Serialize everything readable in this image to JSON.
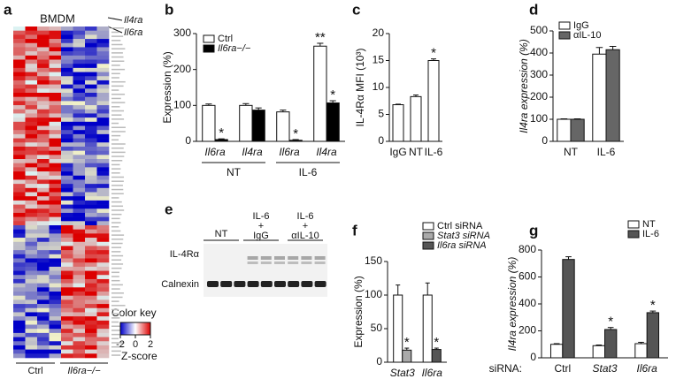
{
  "heatmap": {
    "panel": "a",
    "title": "BMDM",
    "genes": [
      "Il4ra",
      "Il6ra"
    ],
    "groups": [
      "Ctrl",
      "Il6ra−/−"
    ],
    "key_title": "Color key",
    "key_ticks": [
      -2,
      0,
      2
    ],
    "key_label": "Z-score"
  },
  "blot": {
    "panel": "e",
    "lanes": [
      [
        "NT"
      ],
      [
        "IL-6",
        "+",
        "IgG"
      ],
      [
        "IL-6",
        "+",
        "αIL-10"
      ]
    ],
    "rows": [
      "IL-4Rα",
      "Calnexin"
    ]
  },
  "chart_data": [
    {
      "type": "bar",
      "panel": "b",
      "ylabel": "Expression (%)",
      "categories": [
        "Il6ra",
        "Il4ra",
        "Il6ra",
        "Il4ra"
      ],
      "groups": [
        "NT",
        "IL-6"
      ],
      "ylim": [
        0,
        300
      ],
      "yticks": [
        0,
        100,
        200,
        300
      ],
      "series": [
        {
          "name": "Ctrl",
          "color": "#ffffff",
          "values": [
            100,
            100,
            82,
            265
          ],
          "errors": [
            4,
            5,
            5,
            8
          ],
          "stars": [
            null,
            null,
            null,
            "**"
          ]
        },
        {
          "name": "Il6ra−/−",
          "color": "#000000",
          "values": [
            5,
            87,
            3,
            107
          ],
          "errors": [
            2,
            6,
            2,
            6
          ],
          "stars": [
            "*",
            null,
            "*",
            "*"
          ]
        }
      ]
    },
    {
      "type": "bar",
      "panel": "c",
      "ylabel": "IL-4Rα MFI (10³)",
      "categories": [
        "IgG",
        "NT",
        "IL-6"
      ],
      "ylim": [
        0,
        20
      ],
      "yticks": [
        0,
        5,
        10,
        15,
        20
      ],
      "series": [
        {
          "color": "#ffffff",
          "values": [
            6.8,
            8.3,
            15.0
          ],
          "errors": [
            0.1,
            0.3,
            0.3
          ],
          "stars": [
            null,
            null,
            "*"
          ]
        }
      ]
    },
    {
      "type": "bar",
      "panel": "d",
      "ylabel": "Il4ra expression (%)",
      "categories": [
        "NT",
        "IL-6"
      ],
      "ylim": [
        0,
        500
      ],
      "yticks": [
        0,
        100,
        200,
        300,
        400,
        500
      ],
      "series": [
        {
          "name": "IgG",
          "color": "#ffffff",
          "values": [
            100,
            395
          ],
          "errors": [
            2,
            30
          ]
        },
        {
          "name": "αIL-10",
          "color": "#666666",
          "values": [
            100,
            415
          ],
          "errors": [
            2,
            15
          ]
        }
      ]
    },
    {
      "type": "bar",
      "panel": "f",
      "ylabel": "Expression (%)",
      "categories": [
        "Stat3",
        "Il6ra"
      ],
      "ylim": [
        0,
        150
      ],
      "yticks": [
        0,
        50,
        100,
        150
      ],
      "series": [
        {
          "name": "Ctrl siRNA",
          "color": "#ffffff",
          "values": [
            100,
            100
          ],
          "errors": [
            15,
            18
          ],
          "stars": [
            null,
            null
          ]
        },
        {
          "name": "Stat3 siRNA",
          "color": "#aaaaaa",
          "values": [
            18,
            null
          ],
          "errors": [
            3,
            null
          ],
          "stars": [
            "*",
            null
          ]
        },
        {
          "name": "Il6ra siRNA",
          "color": "#555555",
          "values": [
            null,
            19
          ],
          "errors": [
            null,
            2
          ],
          "stars": [
            null,
            "*"
          ]
        }
      ]
    },
    {
      "type": "bar",
      "panel": "g",
      "ylabel": "Il4ra expression (%)",
      "xlabel": "siRNA:",
      "categories": [
        "Ctrl",
        "Stat3",
        "Il6ra"
      ],
      "ylim": [
        0,
        800
      ],
      "yticks": [
        0,
        200,
        400,
        600,
        800
      ],
      "series": [
        {
          "name": "NT",
          "color": "#ffffff",
          "values": [
            100,
            90,
            105
          ],
          "errors": [
            5,
            5,
            10
          ],
          "stars": [
            null,
            null,
            null
          ]
        },
        {
          "name": "IL-6",
          "color": "#555555",
          "values": [
            730,
            210,
            335
          ],
          "errors": [
            20,
            15,
            12
          ],
          "stars": [
            null,
            "*",
            "*"
          ]
        }
      ]
    }
  ]
}
